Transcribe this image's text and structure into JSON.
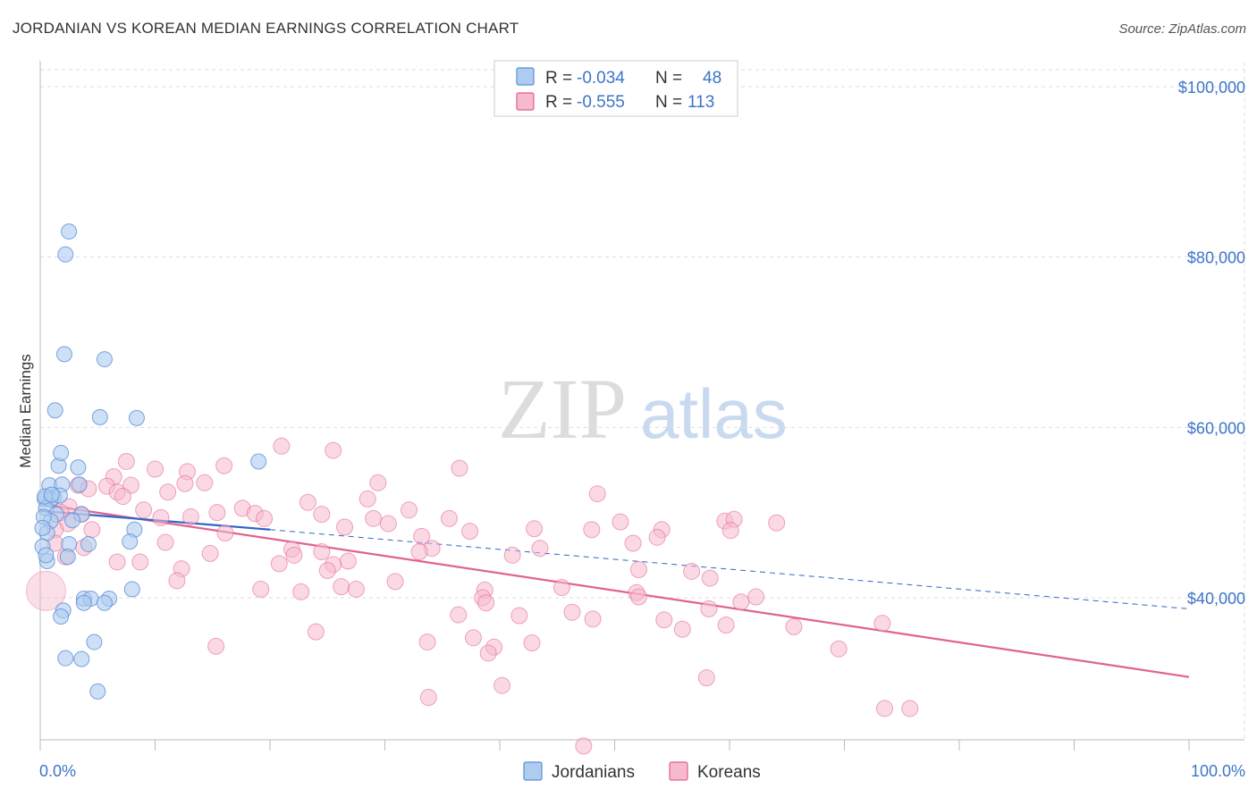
{
  "title": "JORDANIAN VS KOREAN MEDIAN EARNINGS CORRELATION CHART",
  "source": "Source: ZipAtlas.com",
  "watermark": {
    "zip": "ZIP",
    "atlas": "atlas"
  },
  "colors": {
    "blue": "#5b8fd6",
    "blue_fill": "#aecbf0",
    "blue_line": "#2f65c8",
    "pink": "#e35f8f",
    "pink_fill": "#f6b9cd",
    "pink_line": "#e0638f",
    "tick": "#3d74c9",
    "grid": "#dddddd"
  },
  "legend": {
    "rows": [
      {
        "r_label": "R = ",
        "r_value": "-0.034",
        "n_label": "N = ",
        "n_value": "48"
      },
      {
        "r_label": "R = ",
        "r_value": "-0.555",
        "n_label": "N = ",
        "n_value": "113"
      }
    ]
  },
  "chart_data": {
    "type": "scatter",
    "title": "JORDANIAN VS KOREAN MEDIAN EARNINGS CORRELATION CHART",
    "xlabel": "",
    "ylabel": "Median Earnings",
    "xlim": [
      0,
      100
    ],
    "ylim": [
      22000,
      102000
    ],
    "x_tick_labels": [
      "0.0%",
      "100.0%"
    ],
    "y_ticks": [
      {
        "value": 100000,
        "label": "$100,000"
      },
      {
        "value": 80000,
        "label": "$80,000"
      },
      {
        "value": 60000,
        "label": "$60,000"
      },
      {
        "value": 40000,
        "label": "$40,000"
      }
    ],
    "series": [
      {
        "name": "Jordanians",
        "r": -0.034,
        "n": 48,
        "trend_solid": [
          [
            0,
            50200
          ],
          [
            20,
            48000
          ]
        ],
        "trend_dashed": [
          [
            20,
            48000
          ],
          [
            100,
            38700
          ]
        ],
        "points": [
          [
            2.5,
            83000
          ],
          [
            2.2,
            80300
          ],
          [
            2.1,
            68600
          ],
          [
            5.6,
            68000
          ],
          [
            1.3,
            62000
          ],
          [
            5.2,
            61200
          ],
          [
            8.4,
            61100
          ],
          [
            19,
            56000
          ],
          [
            1.6,
            55500
          ],
          [
            3.3,
            55300
          ],
          [
            1.8,
            57000
          ],
          [
            0.8,
            53200
          ],
          [
            1.9,
            53300
          ],
          [
            3.4,
            53300
          ],
          [
            0.4,
            51600
          ],
          [
            1.2,
            51800
          ],
          [
            0.9,
            51500
          ],
          [
            1.7,
            52000
          ],
          [
            0.5,
            50500
          ],
          [
            3.6,
            49800
          ],
          [
            1.4,
            49800
          ],
          [
            0.9,
            49000
          ],
          [
            2.8,
            49100
          ],
          [
            0.6,
            47600
          ],
          [
            8.2,
            48000
          ],
          [
            7.8,
            46600
          ],
          [
            2.5,
            46300
          ],
          [
            4.2,
            46300
          ],
          [
            0.2,
            46000
          ],
          [
            2.4,
            44800
          ],
          [
            0.6,
            44300
          ],
          [
            8.0,
            41000
          ],
          [
            3.8,
            39900
          ],
          [
            4.4,
            39900
          ],
          [
            6.0,
            39900
          ],
          [
            5.6,
            39400
          ],
          [
            3.8,
            39400
          ],
          [
            2.0,
            38500
          ],
          [
            1.8,
            37800
          ],
          [
            4.7,
            34800
          ],
          [
            2.2,
            32900
          ],
          [
            3.6,
            32800
          ],
          [
            5.0,
            29000
          ],
          [
            0.4,
            51900
          ],
          [
            0.3,
            49500
          ],
          [
            0.2,
            48200
          ],
          [
            0.5,
            45000
          ],
          [
            1.0,
            52100
          ]
        ]
      },
      {
        "name": "Koreans",
        "r": -0.555,
        "n": 113,
        "trend": [
          [
            0,
            51000
          ],
          [
            100,
            30700
          ]
        ],
        "points": [
          [
            21,
            57800
          ],
          [
            25.5,
            57300
          ],
          [
            7.5,
            56000
          ],
          [
            16,
            55500
          ],
          [
            36.5,
            55200
          ],
          [
            10,
            55100
          ],
          [
            12.8,
            54800
          ],
          [
            6.4,
            54200
          ],
          [
            14.3,
            53500
          ],
          [
            12.6,
            53400
          ],
          [
            29.4,
            53500
          ],
          [
            3.3,
            53200
          ],
          [
            7.9,
            53200
          ],
          [
            5.8,
            53100
          ],
          [
            4.2,
            52800
          ],
          [
            6.7,
            52400
          ],
          [
            11.1,
            52400
          ],
          [
            7.2,
            51900
          ],
          [
            23.3,
            51200
          ],
          [
            28.5,
            51600
          ],
          [
            48.5,
            52200
          ],
          [
            17.6,
            50500
          ],
          [
            9,
            50300
          ],
          [
            32.1,
            50300
          ],
          [
            15.4,
            50000
          ],
          [
            24.5,
            49800
          ],
          [
            18.7,
            49900
          ],
          [
            3.6,
            49800
          ],
          [
            2.5,
            50700
          ],
          [
            1.8,
            50000
          ],
          [
            13.1,
            49500
          ],
          [
            10.5,
            49400
          ],
          [
            19.5,
            49300
          ],
          [
            29,
            49300
          ],
          [
            35.6,
            49300
          ],
          [
            59.6,
            49000
          ],
          [
            60.4,
            49200
          ],
          [
            50.5,
            48900
          ],
          [
            48,
            48000
          ],
          [
            64.1,
            48800
          ],
          [
            26.5,
            48300
          ],
          [
            30.3,
            48700
          ],
          [
            43,
            48100
          ],
          [
            54.1,
            48000
          ],
          [
            37.4,
            47800
          ],
          [
            60.1,
            47900
          ],
          [
            16.1,
            47600
          ],
          [
            4.5,
            48000
          ],
          [
            2.4,
            48700
          ],
          [
            1.3,
            48000
          ],
          [
            33.2,
            47200
          ],
          [
            53.7,
            47100
          ],
          [
            10.9,
            46500
          ],
          [
            51.6,
            46400
          ],
          [
            21.9,
            45700
          ],
          [
            24.5,
            45400
          ],
          [
            34.1,
            45800
          ],
          [
            43.5,
            45800
          ],
          [
            14.8,
            45200
          ],
          [
            33,
            45400
          ],
          [
            41.1,
            45000
          ],
          [
            22.1,
            45000
          ],
          [
            26.8,
            44300
          ],
          [
            8.7,
            44200
          ],
          [
            20.8,
            44000
          ],
          [
            25.5,
            43900
          ],
          [
            6.7,
            44200
          ],
          [
            2.2,
            44800
          ],
          [
            3.8,
            45900
          ],
          [
            1.3,
            46400
          ],
          [
            12.3,
            43400
          ],
          [
            25,
            43200
          ],
          [
            52.1,
            43300
          ],
          [
            56.7,
            43100
          ],
          [
            58.3,
            42300
          ],
          [
            11.9,
            42000
          ],
          [
            30.9,
            41900
          ],
          [
            38.7,
            40900
          ],
          [
            45.4,
            41200
          ],
          [
            26.2,
            41300
          ],
          [
            27.5,
            41000
          ],
          [
            19.2,
            41000
          ],
          [
            22.7,
            40700
          ],
          [
            38.5,
            40000
          ],
          [
            51.9,
            40600
          ],
          [
            52.1,
            40100
          ],
          [
            58.2,
            38700
          ],
          [
            62.3,
            40100
          ],
          [
            61,
            39500
          ],
          [
            38.8,
            39400
          ],
          [
            46.3,
            38300
          ],
          [
            54.3,
            37400
          ],
          [
            36.4,
            38000
          ],
          [
            41.7,
            37900
          ],
          [
            48.1,
            37500
          ],
          [
            73.3,
            37000
          ],
          [
            59.7,
            36800
          ],
          [
            65.6,
            36600
          ],
          [
            55.9,
            36300
          ],
          [
            24,
            36000
          ],
          [
            37.7,
            35300
          ],
          [
            33.7,
            34800
          ],
          [
            42.8,
            34700
          ],
          [
            15.3,
            34300
          ],
          [
            39.5,
            34200
          ],
          [
            69.5,
            34000
          ],
          [
            39,
            33500
          ],
          [
            58,
            30600
          ],
          [
            40.2,
            29700
          ],
          [
            33.8,
            28300
          ],
          [
            73.5,
            27000
          ],
          [
            75.7,
            27000
          ],
          [
            47.3,
            22600
          ]
        ]
      }
    ],
    "legend_position": "bottom-center"
  }
}
